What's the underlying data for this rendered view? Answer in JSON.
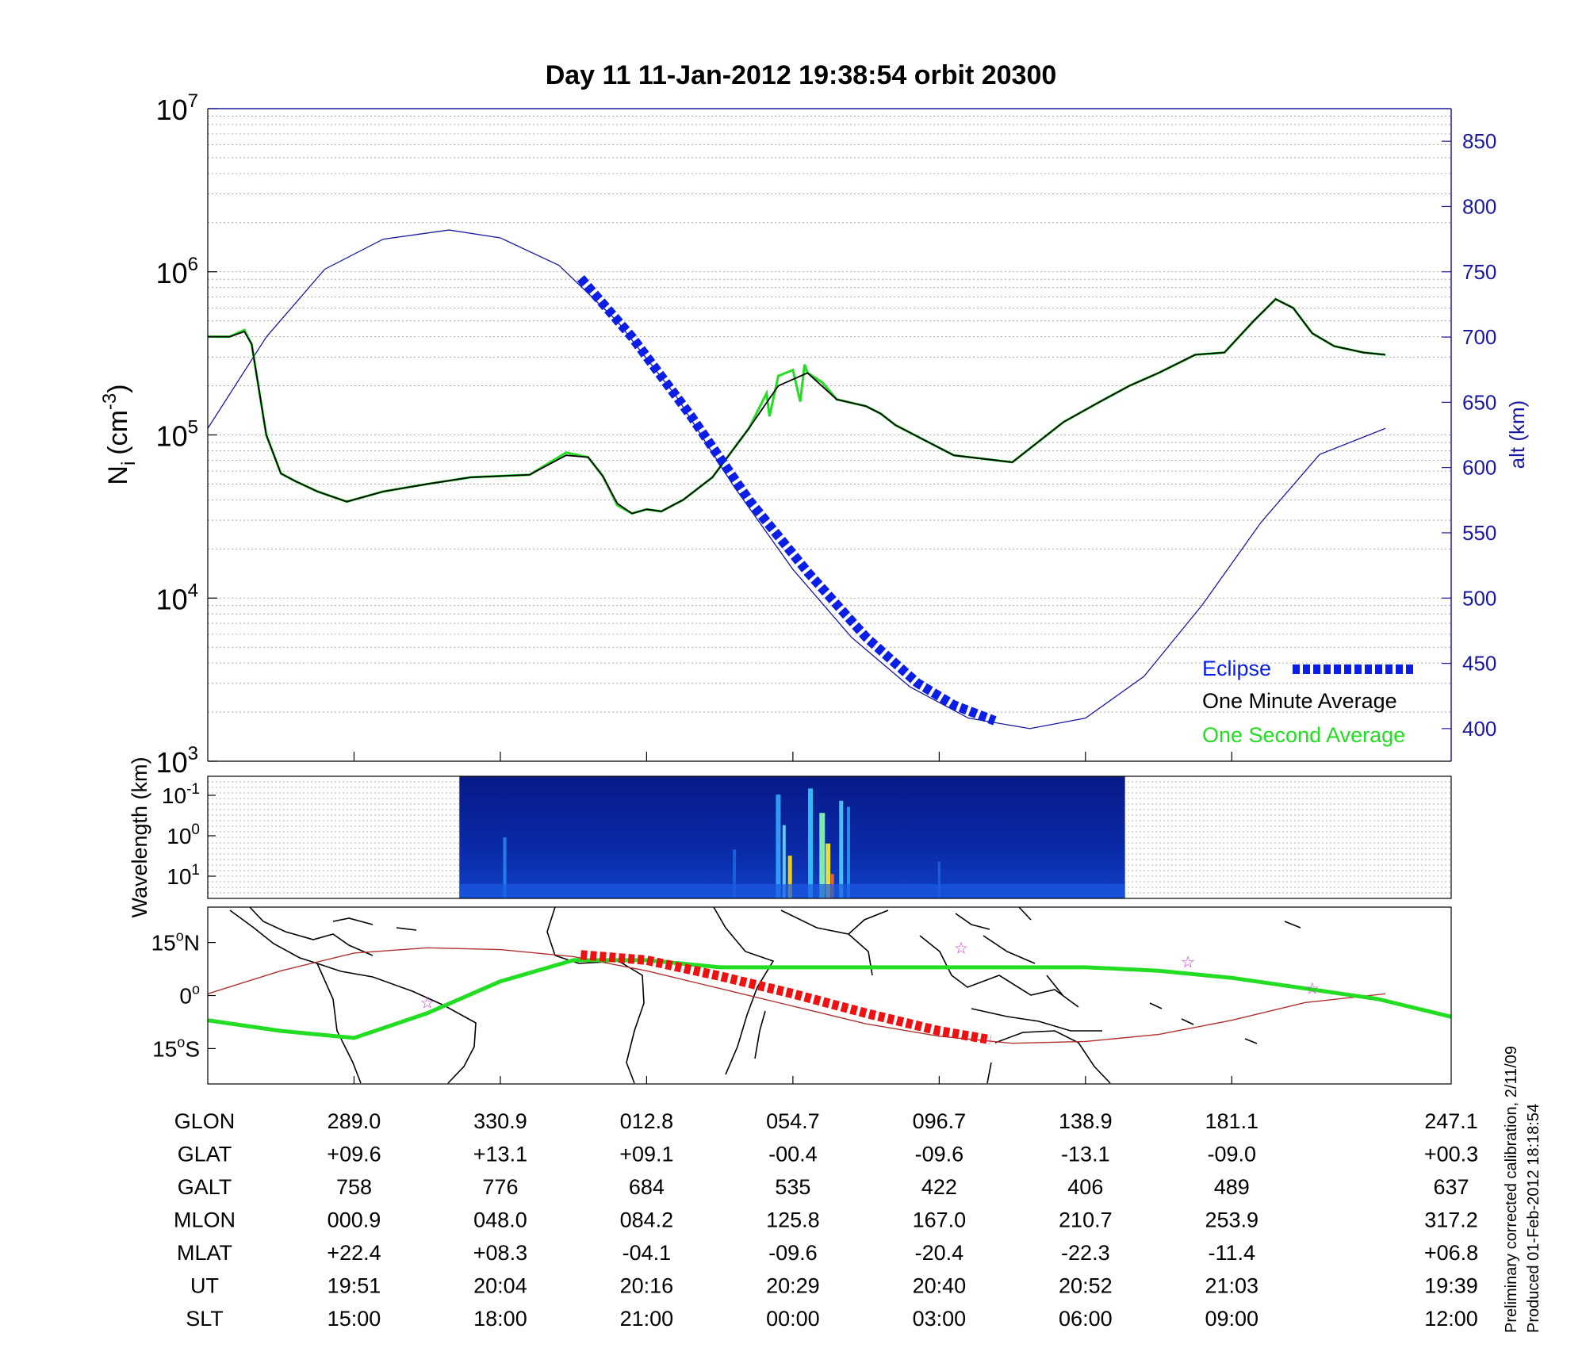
{
  "title": "Day 11  11-Jan-2012 19:38:54   orbit 20300",
  "colors": {
    "one_minute": "#000000",
    "one_second": "#22dd22",
    "eclipse": "#0a1ee6",
    "altitude": "#1a1aa0",
    "track": "#22dd22",
    "orbit": "#b03030",
    "eclipse_track": "#ee1111",
    "star": "#cc33cc"
  },
  "chart_data": [
    {
      "type": "line",
      "panel": "density",
      "ylabel": "N_i (cm^-3)",
      "ylabel_main": "N",
      "ylabel_sub": "i",
      "ylabel_unit": "(cm",
      "ylabel_sup": "-3",
      "ylabel_close": ")",
      "yscale": "log",
      "ylim": [
        1000,
        10000000
      ],
      "y_ticks": [
        {
          "value": 1000,
          "base": "10",
          "exp": "3"
        },
        {
          "value": 10000,
          "base": "10",
          "exp": "4"
        },
        {
          "value": 100000,
          "base": "10",
          "exp": "5"
        },
        {
          "value": 1000000,
          "base": "10",
          "exp": "6"
        },
        {
          "value": 10000000,
          "base": "10",
          "exp": "7"
        }
      ],
      "y2label": "alt (km)",
      "y2lim": [
        375,
        875
      ],
      "y2_ticks": [
        400,
        450,
        500,
        550,
        600,
        650,
        700,
        750,
        800,
        850
      ],
      "xlim": [
        -1,
        7.5
      ],
      "grid": true,
      "legend_position": "bottom-right",
      "legend": {
        "eclipse": "Eclipse",
        "one_minute": "One Minute Average",
        "one_second": "One Second Average"
      },
      "series": [
        {
          "name": "One Minute Average",
          "x": [
            -1.0,
            -0.85,
            -0.75,
            -0.7,
            -0.6,
            -0.5,
            -0.4,
            -0.25,
            -0.05,
            0.2,
            0.5,
            0.8,
            1.2,
            1.45,
            1.6,
            1.7,
            1.8,
            1.9,
            2.0,
            2.1,
            2.25,
            2.45,
            2.7,
            2.9,
            3.1,
            3.3,
            3.5,
            3.6,
            3.7,
            4.1,
            4.5,
            4.85,
            5.1,
            5.3,
            5.5,
            5.75,
            5.95,
            6.15,
            6.3,
            6.42,
            6.55,
            6.7,
            6.9,
            7.05
          ],
          "y": [
            400000,
            400000,
            430000,
            360000,
            100000,
            58000,
            52000,
            45000,
            39000,
            45000,
            50000,
            55000,
            57000,
            75000,
            73000,
            56000,
            38000,
            33000,
            35000,
            34000,
            40000,
            55000,
            110000,
            200000,
            240000,
            165000,
            150000,
            135000,
            115000,
            75000,
            68000,
            120000,
            160000,
            200000,
            240000,
            310000,
            320000,
            500000,
            680000,
            600000,
            420000,
            350000,
            320000,
            310000
          ]
        },
        {
          "name": "One Second Average",
          "x": [
            -1.0,
            -0.85,
            -0.75,
            -0.7,
            -0.6,
            -0.5,
            -0.4,
            -0.25,
            -0.05,
            0.2,
            0.5,
            0.8,
            1.2,
            1.45,
            1.6,
            1.7,
            1.8,
            1.9,
            2.0,
            2.1,
            2.25,
            2.45,
            2.7,
            2.82,
            2.84,
            2.9,
            3.0,
            3.05,
            3.08,
            3.1,
            3.2,
            3.3,
            3.5,
            3.6,
            3.7,
            4.1,
            4.5,
            4.85,
            5.1,
            5.3,
            5.5,
            5.75,
            5.95,
            6.15,
            6.3,
            6.42,
            6.55,
            6.7,
            6.9,
            7.05
          ],
          "y": [
            400000,
            400000,
            440000,
            360000,
            100000,
            58000,
            52000,
            45000,
            39000,
            45000,
            50000,
            55000,
            57000,
            78000,
            73000,
            56000,
            37000,
            33000,
            35000,
            34000,
            40000,
            55000,
            110000,
            180000,
            130000,
            230000,
            250000,
            160000,
            270000,
            240000,
            210000,
            165000,
            150000,
            135000,
            115000,
            75000,
            68000,
            120000,
            160000,
            200000,
            240000,
            310000,
            320000,
            500000,
            680000,
            600000,
            420000,
            350000,
            320000,
            310000
          ]
        },
        {
          "name": "Eclipse",
          "x": [
            1.55,
            1.9,
            2.3,
            2.7,
            3.1,
            3.5,
            3.85,
            4.1,
            4.38
          ],
          "y": [
            745,
            700,
            640,
            575,
            520,
            470,
            435,
            418,
            406
          ]
        },
        {
          "name": "alt (km)",
          "x": [
            -1.0,
            -0.6,
            -0.2,
            0.2,
            0.65,
            1.0,
            1.4,
            1.8,
            2.2,
            2.6,
            3.0,
            3.4,
            3.8,
            4.2,
            4.62,
            5.0,
            5.4,
            5.8,
            6.2,
            6.6,
            7.05
          ],
          "y": [
            630,
            700,
            752,
            775,
            782,
            776,
            755,
            712,
            655,
            585,
            522,
            470,
            432,
            408,
            400,
            408,
            440,
            495,
            558,
            610,
            630
          ]
        }
      ]
    },
    {
      "type": "heatmap",
      "panel": "spectrogram",
      "ylabel": "Wavelength (km)",
      "yscale": "log",
      "y_ticks": [
        {
          "value": 0.1,
          "base": "10",
          "exp": "-1"
        },
        {
          "value": 1,
          "base": "10",
          "exp": "0"
        },
        {
          "value": 10,
          "base": "10",
          "exp": "1"
        }
      ],
      "x_range": [
        0.72,
        5.27
      ]
    },
    {
      "type": "line",
      "panel": "map",
      "y_ticks": [
        {
          "value": 15,
          "label": "15",
          "deg": "o",
          "hem": "N"
        },
        {
          "value": 0,
          "label": "0",
          "deg": "o",
          "hem": ""
        },
        {
          "value": -15,
          "label": "15",
          "deg": "o",
          "hem": "S"
        }
      ],
      "ylim": [
        -25,
        25
      ],
      "series": [
        {
          "name": "magnetic equator",
          "x": [
            -1.0,
            -0.5,
            0.0,
            0.5,
            1.0,
            1.5,
            2.0,
            2.5,
            3.0,
            3.5,
            4.0,
            4.5,
            5.0,
            5.5,
            6.0,
            6.5,
            7.0,
            7.5
          ],
          "y": [
            -7,
            -10,
            -12,
            -5,
            4,
            10,
            10,
            8,
            8,
            8,
            8,
            8,
            8,
            7,
            5,
            2,
            -1,
            -6
          ]
        },
        {
          "name": "orbit track",
          "x": [
            -1.0,
            -0.5,
            0.0,
            0.5,
            1.0,
            1.5,
            2.0,
            2.5,
            3.0,
            3.5,
            4.0,
            4.5,
            5.0,
            5.5,
            6.0,
            6.5,
            7.05
          ],
          "y": [
            0.5,
            7,
            12,
            13.5,
            13,
            11,
            7,
            2,
            -3,
            -8,
            -11.5,
            -13.5,
            -13,
            -11,
            -7,
            -2,
            0.5
          ]
        },
        {
          "name": "eclipse track",
          "x": [
            1.55,
            2.0,
            2.5,
            3.0,
            3.5,
            4.0,
            4.35
          ],
          "y": [
            11.5,
            10,
            5.5,
            0.5,
            -5,
            -10,
            -12.5
          ]
        }
      ],
      "stars": {
        "x": [
          0.5,
          4.15,
          5.7,
          6.55
        ],
        "y": [
          -2,
          13.5,
          9.5,
          2
        ]
      }
    },
    {
      "type": "table",
      "panel": "ephemeris",
      "columns": [
        0,
        1,
        2,
        3,
        4,
        5,
        6,
        7.5
      ],
      "rows": [
        {
          "label": "GLON",
          "values": [
            "289.0",
            "330.9",
            "012.8",
            "054.7",
            "096.7",
            "138.9",
            "181.1",
            "247.1"
          ]
        },
        {
          "label": "GLAT",
          "values": [
            "+09.6",
            "+13.1",
            "+09.1",
            "-00.4",
            "-09.6",
            "-13.1",
            "-09.0",
            "+00.3"
          ]
        },
        {
          "label": "GALT",
          "values": [
            "758",
            "776",
            "684",
            "535",
            "422",
            "406",
            "489",
            "637"
          ]
        },
        {
          "label": "MLON",
          "values": [
            "000.9",
            "048.0",
            "084.2",
            "125.8",
            "167.0",
            "210.7",
            "253.9",
            "317.2"
          ]
        },
        {
          "label": "MLAT",
          "values": [
            "+22.4",
            "+08.3",
            "-04.1",
            "-09.6",
            "-20.4",
            "-22.3",
            "-11.4",
            "+06.8"
          ]
        },
        {
          "label": "UT",
          "values": [
            "19:51",
            "20:04",
            "20:16",
            "20:29",
            "20:40",
            "20:52",
            "21:03",
            "19:39"
          ]
        },
        {
          "label": "SLT",
          "values": [
            "15:00",
            "18:00",
            "21:00",
            "00:00",
            "03:00",
            "06:00",
            "09:00",
            "12:00"
          ]
        }
      ]
    }
  ],
  "footnote": {
    "line1": "Preliminary corrected calibration, 2/11/09",
    "line2": "Produced 01-Feb-2012 18:18:54"
  }
}
